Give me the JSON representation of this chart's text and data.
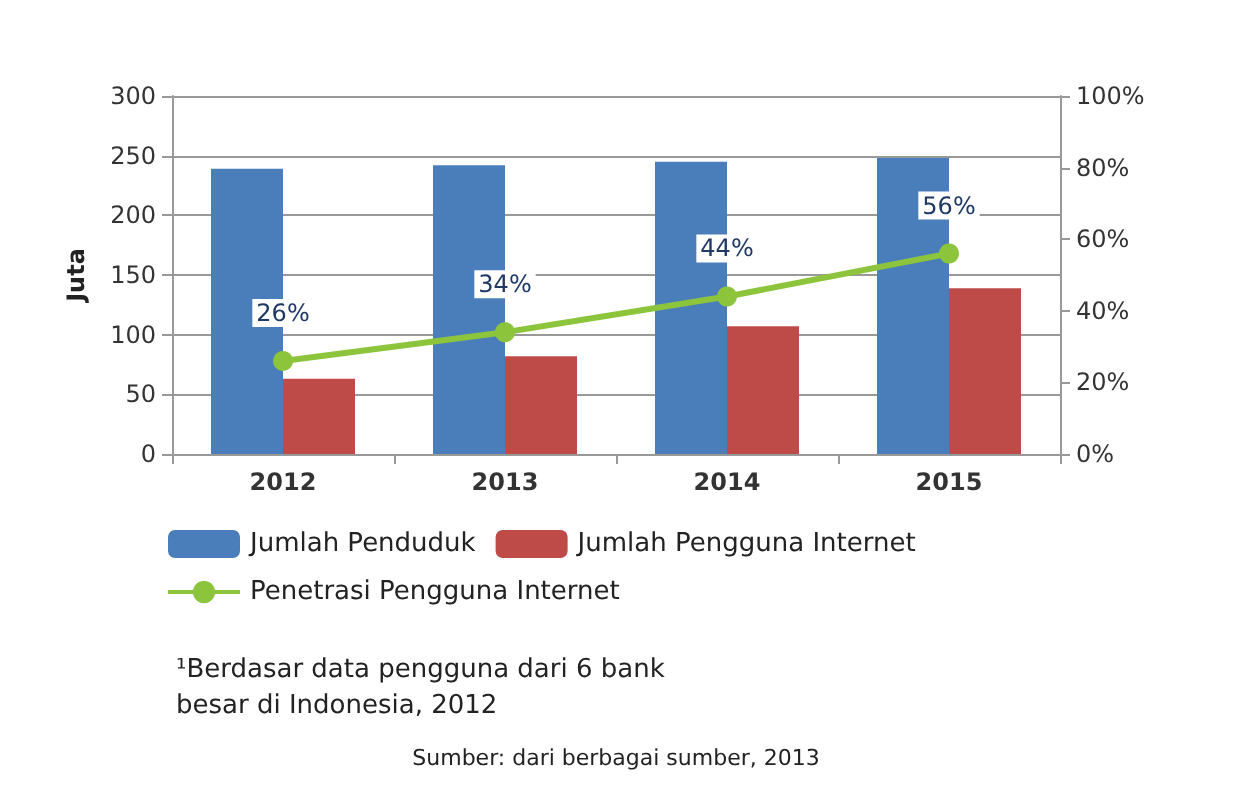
{
  "chart_data": {
    "type": "bar",
    "ylabel": "Juta",
    "categories": [
      "2012",
      "2013",
      "2014",
      "2015"
    ],
    "series": [
      {
        "name": "Jumlah Penduduk",
        "color": "#4a7ebb",
        "values": [
          239,
          242,
          245,
          248
        ]
      },
      {
        "name": "Jumlah Pengguna Internet",
        "color": "#be4b48",
        "values": [
          63,
          82,
          107,
          139
        ]
      },
      {
        "name": "Penetrasi Pengguna Internet",
        "type": "line",
        "axis": "y2",
        "color": "#8cc43c",
        "values": [
          26,
          34,
          44,
          56
        ],
        "value_labels": [
          "26%",
          "34%",
          "44%",
          "56%"
        ]
      }
    ],
    "ylim": [
      0,
      300
    ],
    "yticks": [
      0,
      50,
      100,
      150,
      200,
      250,
      300
    ],
    "y2lim": [
      0,
      100
    ],
    "y2ticks": [
      {
        "value": 0,
        "label": "0%"
      },
      {
        "value": 20,
        "label": "20%"
      },
      {
        "value": 40,
        "label": "40%"
      },
      {
        "value": 60,
        "label": "60%"
      },
      {
        "value": 80,
        "label": "80%"
      },
      {
        "value": 100,
        "label": "100%"
      }
    ],
    "grid": "y",
    "legend": "bottom",
    "marker": "circle",
    "annotations": [
      "¹Berdasar data pengguna dari 6 bank\nbesar di Indonesia, 2012",
      "Sumber: dari berbagai sumber, 2013"
    ]
  }
}
